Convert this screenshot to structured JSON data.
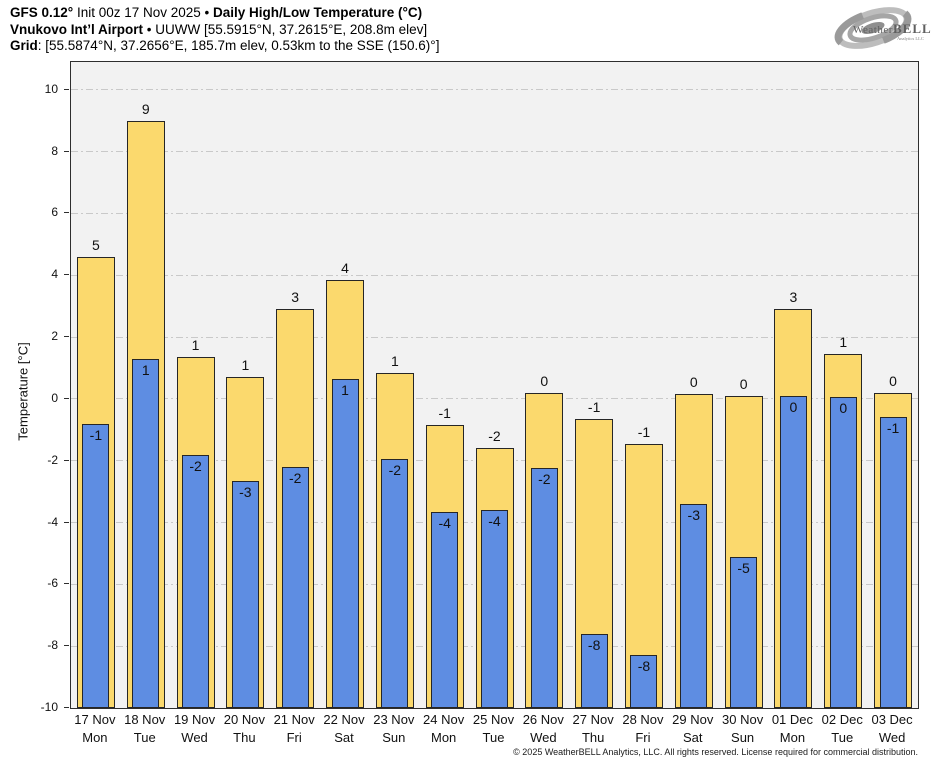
{
  "header": {
    "line1": [
      {
        "text": "GFS 0.12°",
        "bold": true
      },
      {
        "text": " Init 00z 17 Nov 2025 • ",
        "bold": false
      },
      {
        "text": "Daily High/Low Temperature (°C)",
        "bold": true
      }
    ],
    "line2": [
      {
        "text": "Vnukovo Int’l Airport",
        "bold": true
      },
      {
        "text": " • UUWW [55.5915°N, 37.2615°E, 208.8m elev]",
        "bold": false
      }
    ],
    "line3": [
      {
        "text": "Grid",
        "bold": true
      },
      {
        "text": ": [55.5874°N, 37.2656°E, 185.7m elev, 0.53km to the SSE (150.6)°]",
        "bold": false
      }
    ]
  },
  "logo": {
    "brand_main": "Weather",
    "brand_accent": "BELL",
    "brand_sub": "Analytics LLC",
    "color": "#9a9a9a"
  },
  "footer": {
    "copyright": "© 2025 WeatherBELL Analytics, LLC. All rights reserved. License required for commercial distribution."
  },
  "chart_data": {
    "type": "bar",
    "title": "GFS 0.12° Init 00z 17 Nov 2025 • Daily High/Low Temperature (°C)",
    "subtitle": "Vnukovo Int’l Airport • UUWW [55.5915°N, 37.2615°E, 208.8m elev]",
    "grid_info": "Grid: [55.5874°N, 37.2656°E, 185.7m elev, 0.53km to the SSE (150.6)°]",
    "xlabel": "",
    "ylabel": "Temperature [°C]",
    "ylim": [
      -10,
      10.9
    ],
    "yticks": [
      -10,
      -8,
      -6,
      -4,
      -2,
      0,
      2,
      4,
      6,
      8,
      10
    ],
    "grid": "horizontal dash-dot at each ytick",
    "plot_bg": "#f2f2f2",
    "grid_color": "#c9c9c9",
    "bar_outline": "#262626",
    "categories": [
      {
        "date": "17 Nov",
        "day": "Mon"
      },
      {
        "date": "18 Nov",
        "day": "Tue"
      },
      {
        "date": "19 Nov",
        "day": "Wed"
      },
      {
        "date": "20 Nov",
        "day": "Thu"
      },
      {
        "date": "21 Nov",
        "day": "Fri"
      },
      {
        "date": "22 Nov",
        "day": "Sat"
      },
      {
        "date": "23 Nov",
        "day": "Sun"
      },
      {
        "date": "24 Nov",
        "day": "Mon"
      },
      {
        "date": "25 Nov",
        "day": "Tue"
      },
      {
        "date": "26 Nov",
        "day": "Wed"
      },
      {
        "date": "27 Nov",
        "day": "Thu"
      },
      {
        "date": "28 Nov",
        "day": "Fri"
      },
      {
        "date": "29 Nov",
        "day": "Sat"
      },
      {
        "date": "30 Nov",
        "day": "Sun"
      },
      {
        "date": "01 Dec",
        "day": "Mon"
      },
      {
        "date": "02 Dec",
        "day": "Tue"
      },
      {
        "date": "03 Dec",
        "day": "Wed"
      }
    ],
    "series": [
      {
        "name": "Daily High",
        "color": "#fbd96d",
        "values": [
          4.6,
          9.0,
          1.35,
          0.7,
          2.9,
          3.85,
          0.85,
          -0.85,
          -1.6,
          0.2,
          -0.65,
          -1.45,
          0.15,
          0.1,
          2.9,
          1.45,
          0.2
        ],
        "labels": [
          "5",
          "9",
          "1",
          "1",
          "3",
          "4",
          "1",
          "-1",
          "-2",
          "0",
          "-1",
          "-1",
          "0",
          "0",
          "3",
          "1",
          "0"
        ]
      },
      {
        "name": "Daily Low",
        "color": "#5e8de2",
        "values": [
          -0.8,
          1.3,
          -1.8,
          -2.65,
          -2.2,
          0.65,
          -1.95,
          -3.65,
          -3.6,
          -2.25,
          -7.6,
          -8.3,
          -3.4,
          -5.1,
          0.1,
          0.05,
          -0.6
        ],
        "labels": [
          "-1",
          "1",
          "-2",
          "-3",
          "-2",
          "1",
          "-2",
          "-4",
          "-4",
          "-2",
          "-8",
          "-8",
          "-3",
          "-5",
          "0",
          "0",
          "-1"
        ]
      }
    ],
    "legend": "none (high = wide yellow bars, low = narrow blue bars, both anchored at -10)"
  }
}
